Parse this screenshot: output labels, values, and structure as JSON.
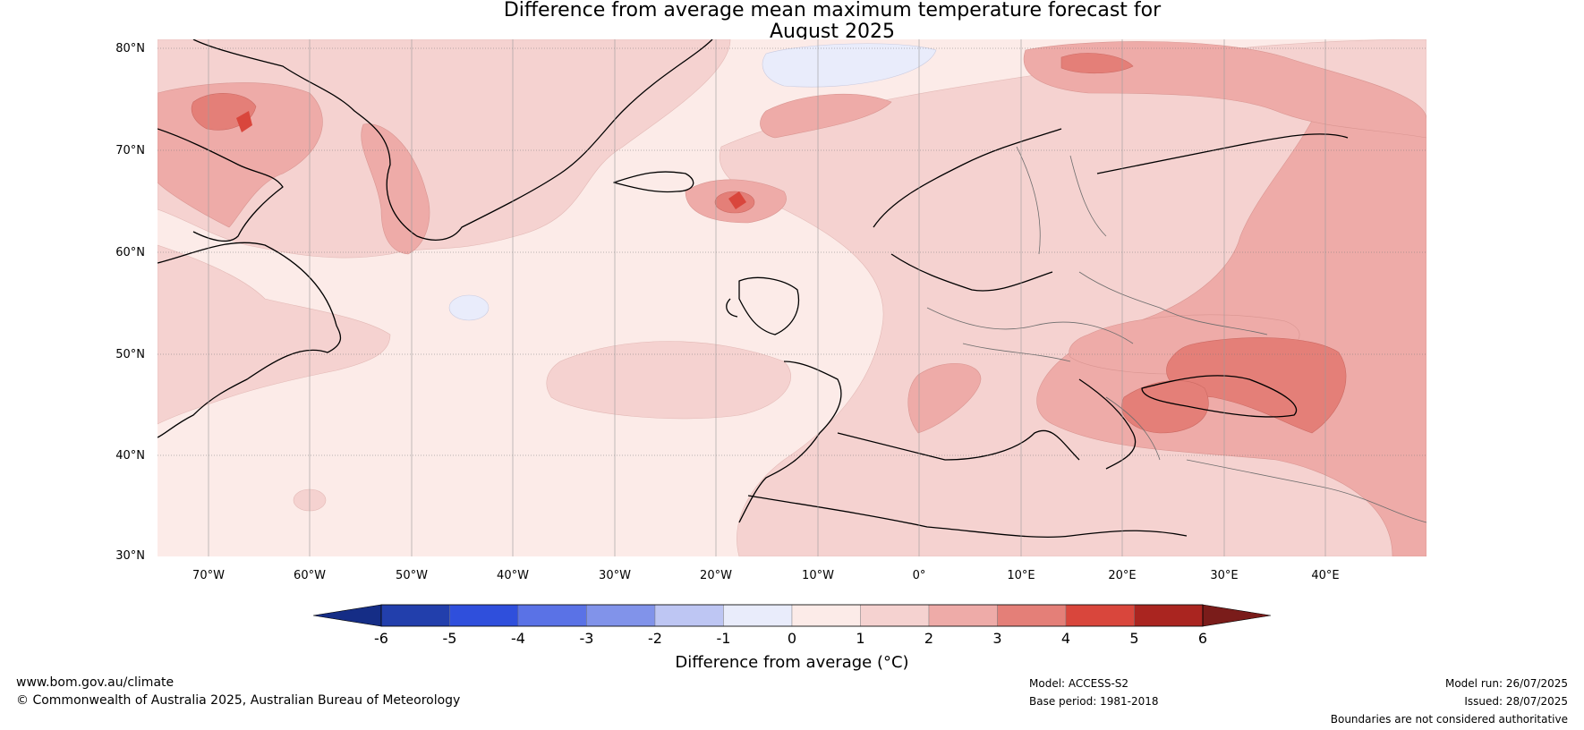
{
  "title_line1": "Difference from average mean maximum temperature forecast for",
  "title_line2": "August 2025",
  "lat_labels": [
    "80°N",
    "70°N",
    "60°N",
    "50°N",
    "40°N",
    "30°N"
  ],
  "lon_labels": [
    "70°W",
    "60°W",
    "50°W",
    "40°W",
    "30°W",
    "20°W",
    "10°W",
    "0°",
    "10°E",
    "20°E",
    "30°E",
    "40°E"
  ],
  "colorbar": {
    "ticks": [
      "-6",
      "-5",
      "-4",
      "-3",
      "-2",
      "-1",
      "0",
      "1",
      "2",
      "3",
      "4",
      "5",
      "6"
    ],
    "colors": [
      "#223fac",
      "#2f4fdc",
      "#5a72e6",
      "#8193ea",
      "#bec6f3",
      "#e9ecfb",
      "#fcebe8",
      "#f5d2d0",
      "#eeaba8",
      "#e47f78",
      "#d9463c",
      "#aa2520"
    ],
    "under_color": "#152d86",
    "over_color": "#7a1c1a",
    "label": "Difference from average (°C)"
  },
  "footer": {
    "url": "www.bom.gov.au/climate",
    "copyright": "© Commonwealth of Australia 2025, Australian Bureau of Meteorology",
    "model": "Model: ACCESS-S2",
    "base_period": "Base period: 1981-2018",
    "model_run": "Model run: 26/07/2025",
    "issued": "Issued: 28/07/2025",
    "disclaimer": "Boundaries are not considered authoritative"
  }
}
